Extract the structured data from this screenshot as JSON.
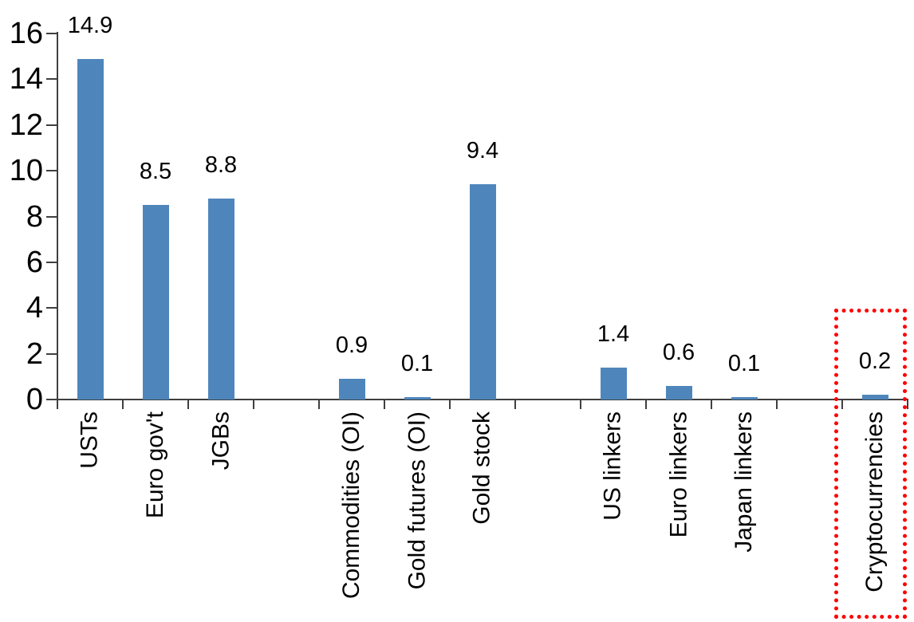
{
  "chart_data": {
    "type": "bar",
    "categories": [
      "USTs",
      "Euro gov't",
      "JGBs",
      "Commodities (OI)",
      "Gold futures (OI)",
      "Gold stock",
      "US linkers",
      "Euro linkers",
      "Japan linkers",
      "Cryptocurrencies"
    ],
    "values": [
      14.9,
      8.5,
      8.8,
      0.9,
      0.1,
      9.4,
      1.4,
      0.6,
      0.1,
      0.2
    ],
    "value_labels": [
      "14.9",
      "8.5",
      "8.8",
      "0.9",
      "0.1",
      "9.4",
      "1.4",
      "0.6",
      "0.1",
      "0.2"
    ],
    "group_gaps_after": [
      2,
      5,
      8
    ],
    "y_ticks": [
      0,
      2,
      4,
      6,
      8,
      10,
      12,
      14,
      16
    ],
    "ylim": [
      0,
      16
    ],
    "title": "",
    "xlabel": "",
    "ylabel": "",
    "grid": "off",
    "legend": "none",
    "bar_color": "#4E86BC",
    "axis_color": "#3F3F3F",
    "label_color": "#000000",
    "highlight": {
      "category": "Cryptocurrencies",
      "style": "dotted-box",
      "color": "#FF0000"
    }
  }
}
